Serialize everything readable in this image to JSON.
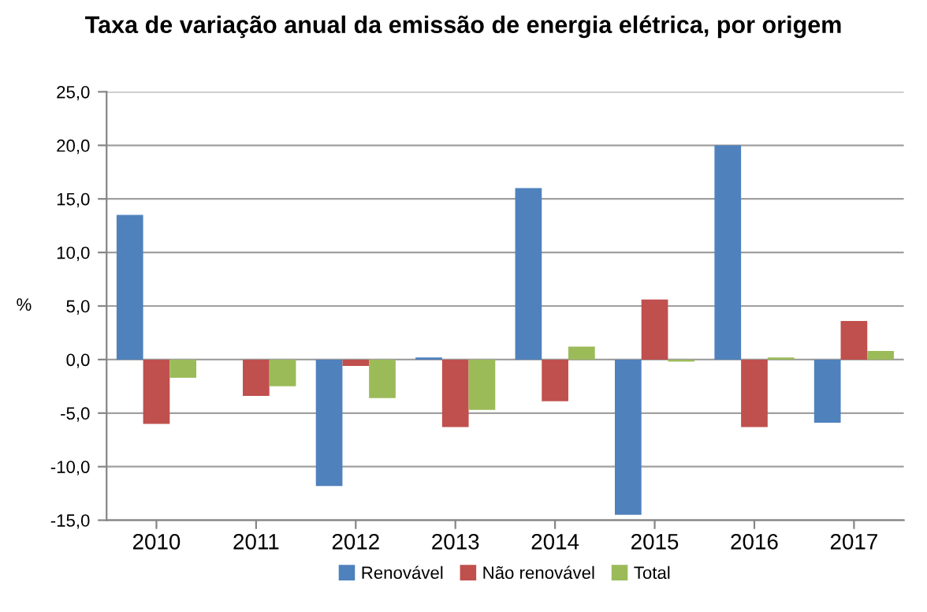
{
  "chart_data": {
    "type": "bar",
    "title": "Taxa de variação anual da emissão de energia elétrica, por origem",
    "ylabel": "%",
    "categories": [
      "2010",
      "2011",
      "2012",
      "2013",
      "2014",
      "2015",
      "2016",
      "2017"
    ],
    "series": [
      {
        "name": "Renovável",
        "color": "#4f81bd",
        "values": [
          13.5,
          0,
          -11.8,
          0.2,
          16.0,
          -14.5,
          20.0,
          -5.9
        ]
      },
      {
        "name": "Não renovável",
        "color": "#c0504d",
        "values": [
          -6.0,
          -3.4,
          -0.6,
          -6.3,
          -3.9,
          5.6,
          -6.3,
          3.6
        ]
      },
      {
        "name": "Total",
        "color": "#9bbb59",
        "values": [
          -1.7,
          -2.5,
          -3.6,
          -4.7,
          1.2,
          -0.2,
          0.2,
          0.8
        ]
      }
    ],
    "ylim": [
      -15,
      25
    ],
    "yticks": [
      {
        "value": -15,
        "label": "-15,0"
      },
      {
        "value": -10,
        "label": "-10,0"
      },
      {
        "value": -5,
        "label": "-5,0"
      },
      {
        "value": 0,
        "label": "0,0"
      },
      {
        "value": 5,
        "label": "5,0"
      },
      {
        "value": 10,
        "label": "10,0"
      },
      {
        "value": 15,
        "label": "15,0"
      },
      {
        "value": 20,
        "label": "20,0"
      },
      {
        "value": 25,
        "label": "25,0"
      }
    ],
    "grid": "y",
    "legend": "bottom"
  }
}
